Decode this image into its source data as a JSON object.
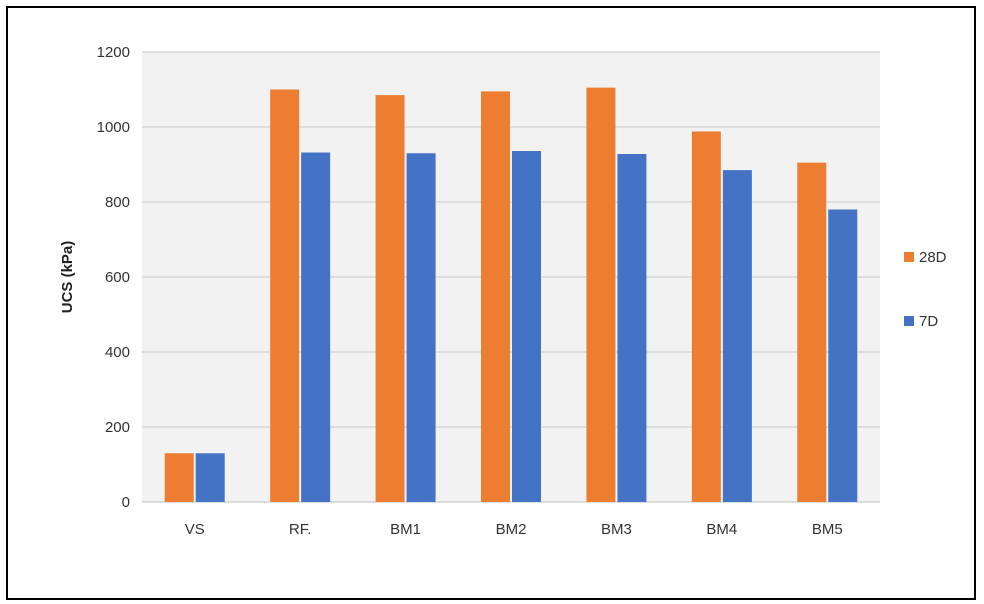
{
  "chart_data": {
    "type": "bar",
    "title": "",
    "xlabel": "",
    "ylabel": "UCS (kPa)",
    "ylim": [
      0,
      1200
    ],
    "yticks": [
      0,
      200,
      400,
      600,
      800,
      1000,
      1200
    ],
    "grid": true,
    "legend_position": "right",
    "categories": [
      "VS",
      "RF.",
      "BM1",
      "BM2",
      "BM3",
      "BM4",
      "BM5"
    ],
    "series": [
      {
        "name": "28D",
        "color": "#ed7d31",
        "values": [
          130,
          1100,
          1085,
          1095,
          1105,
          988,
          905
        ]
      },
      {
        "name": "7D",
        "color": "#4472c4",
        "values": [
          130,
          932,
          930,
          936,
          928,
          885,
          780
        ]
      }
    ]
  }
}
